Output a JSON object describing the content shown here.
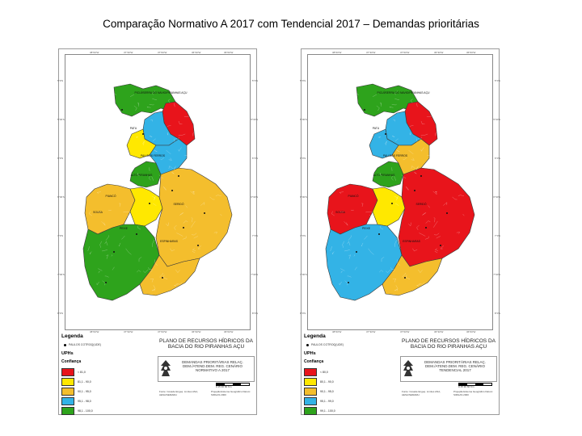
{
  "slide": {
    "title": "Comparação Normativo A 2017  com  Tendencial 2017 – Demandas prioritárias"
  },
  "colors": {
    "red": "#e8141b",
    "green": "#2ea31c",
    "yellow": "#ffe800",
    "orange": "#f4be2d",
    "blue": "#33b3e6"
  },
  "maps": [
    {
      "id": "normativo",
      "legend": {
        "title": "Legenda",
        "point_label": "PAULOS COTROQ(UDE)",
        "uphs_label": "UPHs",
        "confidence_label": "Confiança",
        "items": [
          {
            "label": "< 81,0",
            "color": "#e8141b"
          },
          {
            "label": "81,1 - 90,0",
            "color": "#ffe800"
          },
          {
            "label": "90,1 - 95,0",
            "color": "#f4be2d"
          },
          {
            "label": "95,1 - 98,0",
            "color": "#33b3e6"
          },
          {
            "label": "98,1 - 100,0",
            "color": "#2ea31c"
          }
        ]
      },
      "plan_title": "PLANO DE RECURSOS HÍDRICOS DA BACIA DO RIO PIRANHAS AÇU",
      "subtitle": "DEMANDAS PRIORITÁRIAS RELAÇ. DEM./ATEND.DEM. REG. CENÁRIO NORMATIVO A 2017",
      "fonte": "Fonte: Cosade Engeq. Limites ANA, AESA/SEMARH",
      "proj": "Projeção/sistema Geográfico Datum: SIRGAS 2000",
      "scale": "0  15  30  60 Km",
      "zones": {
        "north_top": "#2ea31c",
        "north_red": "#e8141b",
        "north_blue": "#33b3e6",
        "north_yellow": "#ffe800",
        "middle_green": "#2ea31c",
        "center_blue": "#33b3e6",
        "west_orange": "#f4be2d",
        "center_yellow": "#ffe800",
        "east_orange": "#f4be2d",
        "south_green": "#2ea31c",
        "south_orange": "#f4be2d"
      },
      "place_labels": [
        "PICUÍ/SERRA DO NAVIO/PIRANHAS AÇU",
        "PATU",
        "PAU DOS FERROS",
        "ALTO PIRANHAS",
        "PIANCÓ",
        "SERIDÓ",
        "ESPINHARAS",
        "PEIXE",
        "SOUSA"
      ]
    },
    {
      "id": "tendencial",
      "legend": {
        "title": "Legenda",
        "point_label": "PAULOS COTROQ(UDE)",
        "uphs_label": "UPHs",
        "confidence_label": "Confiança",
        "items": [
          {
            "label": "< 80,0",
            "color": "#e8141b"
          },
          {
            "label": "80,1 - 90,0",
            "color": "#ffe800"
          },
          {
            "label": "90,1 - 95,0",
            "color": "#f4be2d"
          },
          {
            "label": "95,1 - 99,0",
            "color": "#33b3e6"
          },
          {
            "label": "99,1 - 100,0",
            "color": "#2ea31c"
          }
        ]
      },
      "plan_title": "PLANO DE RECURSOS HÍDRICOS DA BACIA DO RIO PIRANHAS AÇU",
      "subtitle": "DEMANDAS PRIORITÁRIAS RELAÇ. DEM./ATEND.DEM. REG. CENÁRIO TENDENCIAL 2017",
      "fonte": "Fonte: Cosade Engeq. Limites ANA, AESA/SEMARH",
      "proj": "Projeção/sistema Geográfico Datum: SIRGAS 2000",
      "scale": "0  15  30  60 Km",
      "zones": {
        "north_top": "#2ea31c",
        "north_red": "#e8141b",
        "north_blue": "#33b3e6",
        "north_yellow": "#33b3e6",
        "middle_green": "#2ea31c",
        "center_blue": "#f4be2d",
        "west_orange": "#e8141b",
        "center_yellow": "#ffe800",
        "east_orange": "#e8141b",
        "south_green": "#33b3e6",
        "south_orange": "#f4be2d"
      },
      "place_labels": [
        "PICUÍ/SERRA DO NAVIO/PIRANHAS AÇU",
        "PATU",
        "PAU DOS FERROS",
        "ALTO PIRANHAS",
        "PIANCÓ",
        "SERIDÓ",
        "ESPINHARAS",
        "PEIXE",
        "SOUSA"
      ]
    }
  ],
  "coords": {
    "top": [
      "38°00'W",
      "37°30'W",
      "37°00'W",
      "36°30'W",
      "36°00'W"
    ],
    "side": [
      "5°0'S",
      "5°30'S",
      "6°0'S",
      "6°30'S",
      "7°0'S",
      "7°30'S",
      "8°0'S"
    ]
  }
}
